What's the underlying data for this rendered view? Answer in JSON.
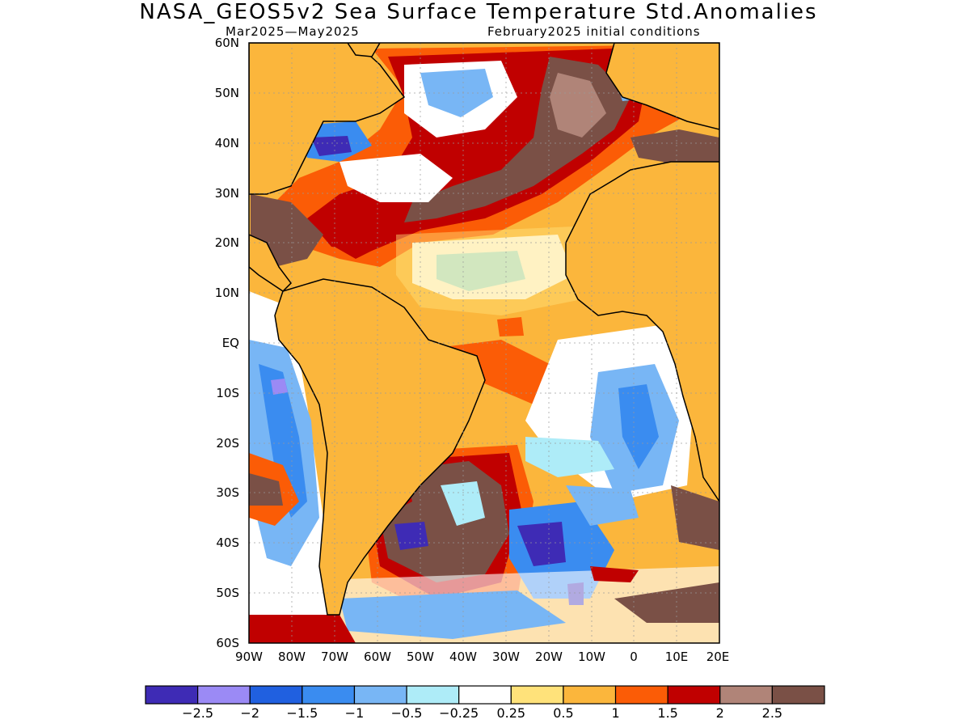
{
  "title": "NASA_GEOS5v2 Sea Surface Temperature Std.Anomalies",
  "subtitle_left": "Mar2025—May2025",
  "subtitle_right": "February2025 initial conditions",
  "lat_labels": [
    "60N",
    "50N",
    "40N",
    "30N",
    "20N",
    "10N",
    "EQ",
    "10S",
    "20S",
    "30S",
    "40S",
    "50S",
    "60S"
  ],
  "lon_labels": [
    "90W",
    "80W",
    "70W",
    "60W",
    "50W",
    "40W",
    "30W",
    "20W",
    "10W",
    "0",
    "10E",
    "20E"
  ],
  "colorbar": {
    "colors": [
      "#3e2bb5",
      "#9b8af5",
      "#2060e0",
      "#3a8cf0",
      "#78b6f5",
      "#aeecf8",
      "#ffffff",
      "#ffe27a",
      "#fbb63c",
      "#fb5c06",
      "#c00000",
      "#b08478",
      "#7a5046"
    ],
    "labels": [
      "−2.5",
      "−2",
      "−1.5",
      "−1",
      "−0.5",
      "−0.25",
      "0.25",
      "0.5",
      "1",
      "1.5",
      "2",
      "2.5"
    ]
  },
  "map": {
    "lat_range": [
      -60,
      60
    ],
    "lon_range": [
      -90,
      20
    ],
    "background_anomaly_color": "#fbb63c",
    "land_color": "#fbb63c"
  }
}
